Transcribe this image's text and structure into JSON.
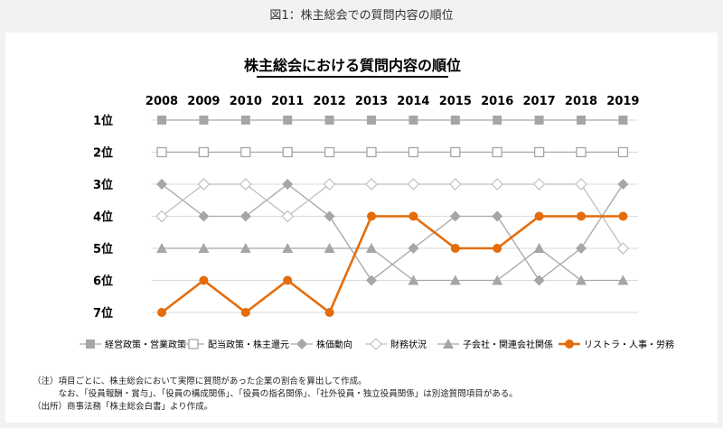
{
  "figure_title": "図1：株主総会での質問内容の順位",
  "chart_data": {
    "type": "line",
    "title": "株主総会における質問内容の順位",
    "x": [
      "2008",
      "2009",
      "2010",
      "2011",
      "2012",
      "2013",
      "2014",
      "2015",
      "2016",
      "2017",
      "2018",
      "2019"
    ],
    "y_ticks": [
      "1位",
      "2位",
      "3位",
      "4位",
      "5位",
      "6位",
      "7位"
    ],
    "ylim": [
      1,
      7
    ],
    "y_inverted": true,
    "grid": true,
    "legend_position": "bottom",
    "series": [
      {
        "name": "経営政策・営業政策",
        "color": "#a6a6a6",
        "marker": "square-filled",
        "values": [
          1,
          1,
          1,
          1,
          1,
          1,
          1,
          1,
          1,
          1,
          1,
          1
        ]
      },
      {
        "name": "配当政策・株主還元",
        "color": "#a6a6a6",
        "marker": "square-open",
        "values": [
          2,
          2,
          2,
          2,
          2,
          2,
          2,
          2,
          2,
          2,
          2,
          2
        ]
      },
      {
        "name": "株価動向",
        "color": "#a6a6a6",
        "marker": "diamond-filled",
        "values": [
          3,
          4,
          4,
          3,
          4,
          6,
          5,
          4,
          4,
          6,
          5,
          3
        ]
      },
      {
        "name": "財務状況",
        "color": "#bfbfbf",
        "marker": "diamond-open",
        "values": [
          4,
          3,
          3,
          4,
          3,
          3,
          3,
          3,
          3,
          3,
          3,
          5
        ]
      },
      {
        "name": "子会社・関連会社関係",
        "color": "#a6a6a6",
        "marker": "triangle-filled",
        "values": [
          5,
          5,
          5,
          5,
          5,
          5,
          6,
          6,
          6,
          5,
          6,
          6
        ]
      },
      {
        "name": "リストラ・人事・労務",
        "color": "#e46c0a",
        "marker": "circle-filled",
        "values": [
          7,
          6,
          7,
          6,
          7,
          4,
          4,
          5,
          5,
          4,
          4,
          4
        ]
      }
    ]
  },
  "notes": [
    "（注）項目ごとに、株主総会において実際に質問があった企業の割合を算出して作成。",
    "　　　なお、「役員報酬・賞与」、「役員の構成関係」、「役員の指名関係」、「社外役員・独立役員関係」は別途質問項目がある。",
    "（出所）商事法務「株主総会白書」より作成。"
  ]
}
